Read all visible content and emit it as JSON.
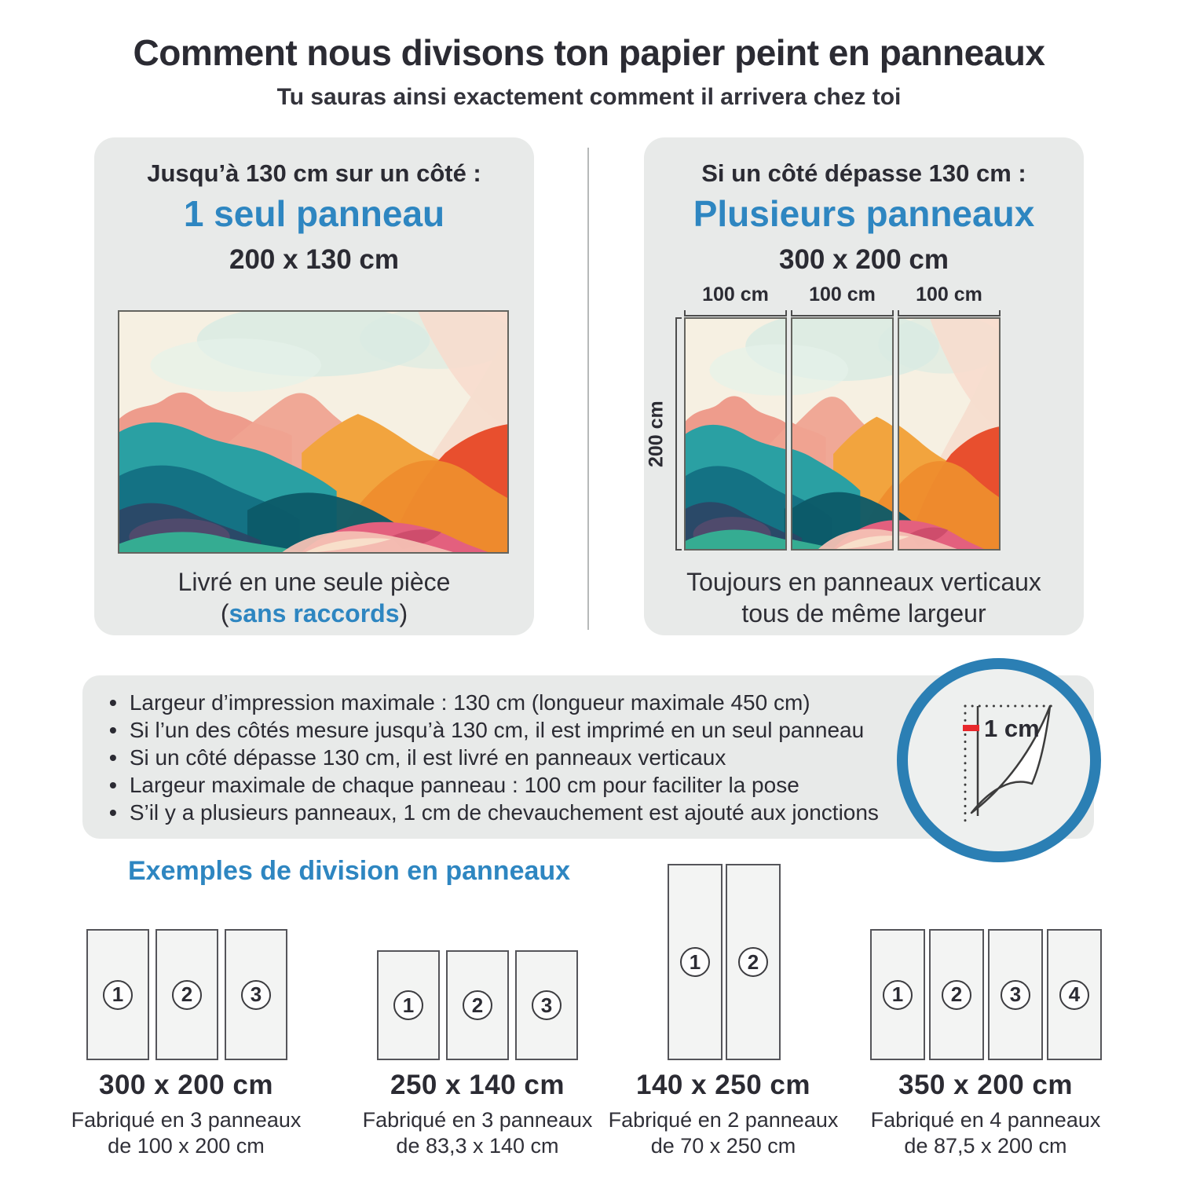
{
  "header": {
    "title": "Comment nous divisons ton papier peint en panneaux",
    "subtitle": "Tu sauras ainsi exactement comment il arrivera chez toi"
  },
  "card_single": {
    "condition": "Jusqu’à 130 cm sur un côté :",
    "result": "1 seul panneau",
    "size": "200 x 130 cm",
    "caption_line1": "Livré en une seule pièce",
    "caption_paren_open": "(",
    "caption_highlight": "sans raccords",
    "caption_paren_close": ")"
  },
  "card_multi": {
    "condition": "Si un côté dépasse 130 cm :",
    "result": "Plusieurs panneaux",
    "size": "300 x 200 cm",
    "width_labels": [
      "100 cm",
      "100 cm",
      "100 cm"
    ],
    "height_label": "200 cm",
    "caption_line1": "Toujours en panneaux verticaux",
    "caption_line2": "tous de même largeur"
  },
  "rules": {
    "items": [
      "Largeur d’impression maximale : 130 cm (longueur maximale 450 cm)",
      "Si l’un des côtés mesure jusqu’à 130 cm, il est imprimé en un seul panneau",
      "Si un côté dépasse 130 cm, il est livré en panneaux verticaux",
      "Largeur maximale de chaque panneau : 100 cm pour faciliter la pose",
      "S’il y a plusieurs panneaux, 1 cm de chevauchement est ajouté aux jonctions"
    ],
    "overlap_label": "1 cm"
  },
  "examples": {
    "heading": "Exemples de division en panneaux",
    "items": [
      {
        "size": "300 x 200 cm",
        "desc1": "Fabriqué en 3 panneaux",
        "desc2": "de 100 x 200 cm",
        "panels": 3
      },
      {
        "size": "250 x 140 cm",
        "desc1": "Fabriqué en 3 panneaux",
        "desc2": "de 83,3 x 140 cm",
        "panels": 3
      },
      {
        "size": "140 x 250 cm",
        "desc1": "Fabriqué en 2 panneaux",
        "desc2": "de 70 x 250 cm",
        "panels": 2
      },
      {
        "size": "350 x 200 cm",
        "desc1": "Fabriqué en 4 panneaux",
        "desc2": "de 87,5 x 200 cm",
        "panels": 4
      }
    ]
  },
  "colors": {
    "accent_blue": "#2e86c1",
    "text_dark": "#2b2b33",
    "card_background": "#e8eae9",
    "overlap_red": "#e8282c"
  }
}
